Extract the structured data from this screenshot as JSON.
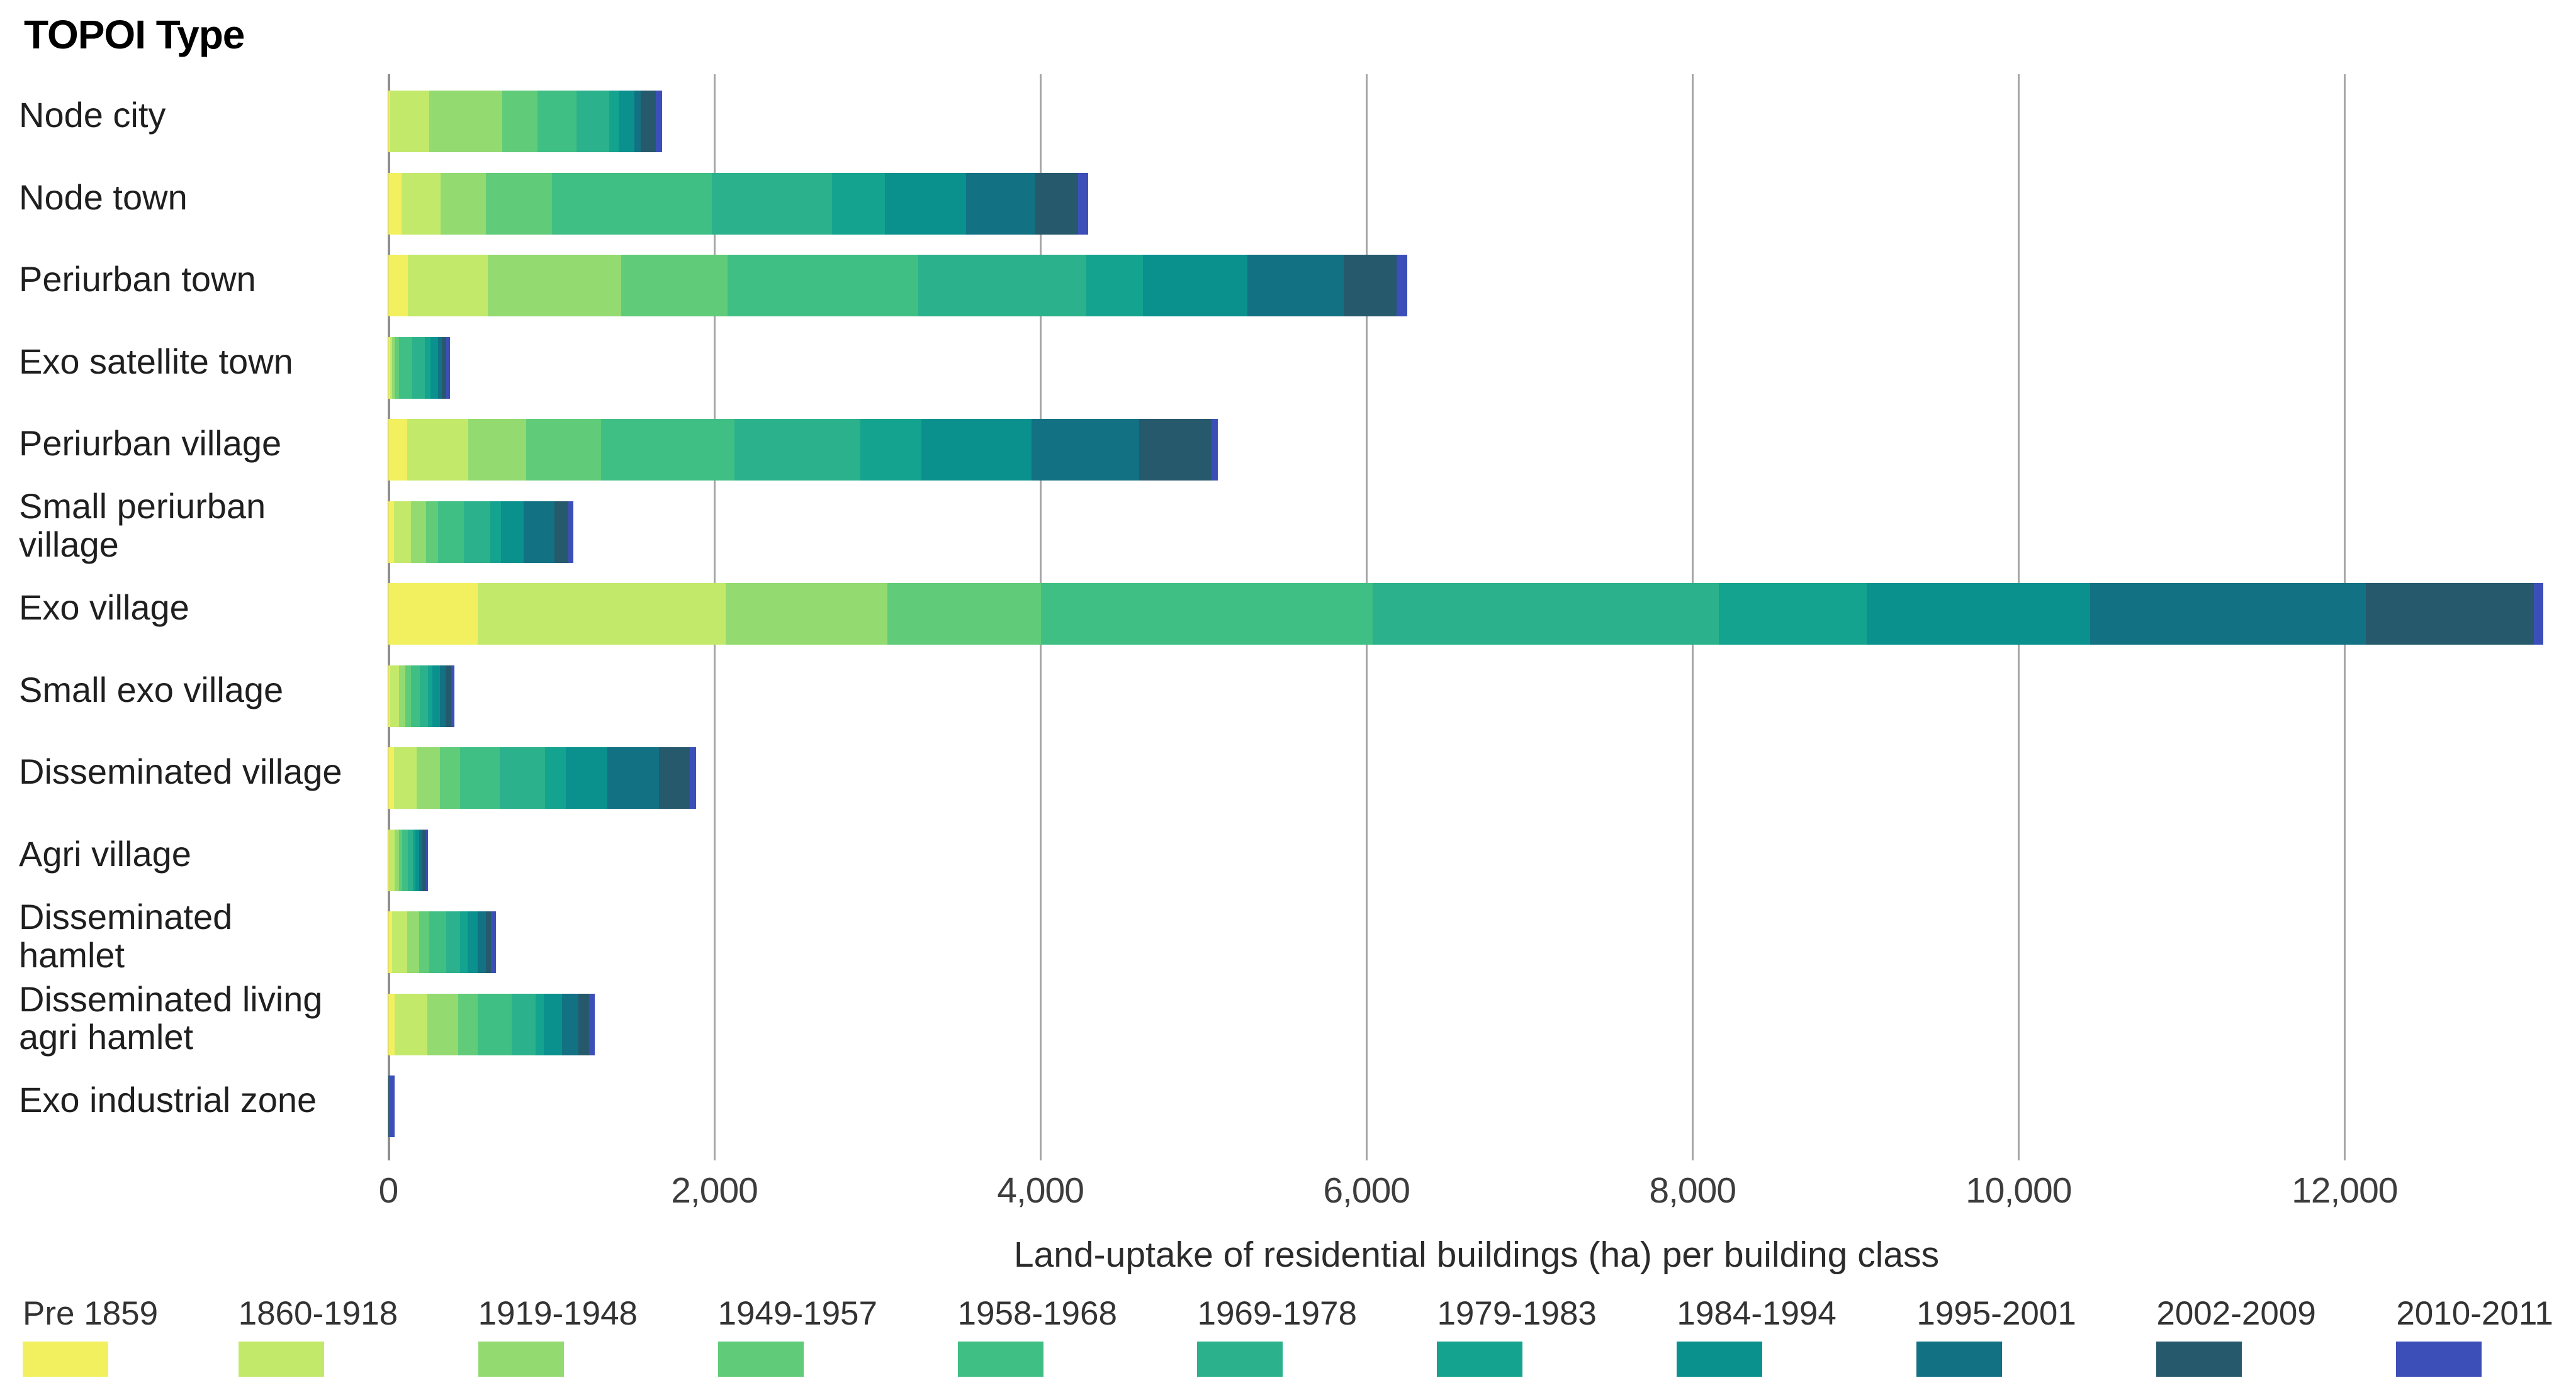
{
  "title": "TOPOI Type",
  "chart_data": {
    "type": "bar",
    "orientation": "horizontal",
    "stacked": true,
    "title": "TOPOI Type",
    "xlabel": "Land-uptake of residential buildings (ha) per building class",
    "ylabel": "TOPOI Type",
    "xlim": [
      0,
      13350
    ],
    "grid": "vertical",
    "legend_position": "bottom",
    "x_ticks": [
      0,
      2000,
      4000,
      6000,
      8000,
      10000,
      12000
    ],
    "x_tick_labels": [
      "0",
      "2,000",
      "4,000",
      "6,000",
      "8,000",
      "10,000",
      "12,000"
    ],
    "categories": [
      "Node city",
      "Node town",
      "Periurban town",
      "Exo satellite town",
      "Periurban village",
      "Small periurban\nvillage",
      "Exo village",
      "Small exo village",
      "Disseminated village",
      "Agri village",
      "Disseminated\nhamlet",
      "Disseminated living\nagri hamlet",
      "Exo industrial zone"
    ],
    "category_totals": [
      1680,
      4295,
      6250,
      380,
      5090,
      1135,
      13220,
      405,
      1890,
      245,
      660,
      1265,
      40
    ],
    "series": [
      {
        "name": "Pre 1859",
        "color": "#f2f05e",
        "values": [
          10,
          80,
          120,
          10,
          115,
          35,
          550,
          10,
          35,
          5,
          25,
          40,
          0
        ]
      },
      {
        "name": "1860-1918",
        "color": "#c3e96b",
        "values": [
          240,
          240,
          490,
          15,
          375,
          105,
          1520,
          55,
          140,
          35,
          90,
          200,
          0
        ]
      },
      {
        "name": "1919-1948",
        "color": "#93da70",
        "values": [
          450,
          280,
          820,
          15,
          355,
          90,
          990,
          40,
          140,
          25,
          75,
          190,
          0
        ]
      },
      {
        "name": "1949-1957",
        "color": "#60cb79",
        "values": [
          215,
          405,
          650,
          25,
          460,
          75,
          945,
          35,
          125,
          20,
          60,
          120,
          0
        ]
      },
      {
        "name": "1958-1968",
        "color": "#40bf84",
        "values": [
          240,
          980,
          1170,
          80,
          820,
          160,
          2035,
          55,
          245,
          35,
          105,
          205,
          0
        ]
      },
      {
        "name": "1969-1978",
        "color": "#2bb18b",
        "values": [
          200,
          735,
          1030,
          80,
          770,
          160,
          2120,
          50,
          275,
          30,
          85,
          150,
          0
        ]
      },
      {
        "name": "1979-1983",
        "color": "#14a38f",
        "values": [
          60,
          325,
          350,
          35,
          375,
          65,
          910,
          25,
          130,
          15,
          45,
          50,
          0
        ]
      },
      {
        "name": "1984-1994",
        "color": "#0a918e",
        "values": [
          95,
          500,
          640,
          45,
          675,
          140,
          1370,
          45,
          255,
          25,
          65,
          110,
          0
        ]
      },
      {
        "name": "1995-2001",
        "color": "#127183",
        "values": [
          40,
          425,
          590,
          25,
          660,
          190,
          1690,
          35,
          315,
          20,
          50,
          100,
          0
        ]
      },
      {
        "name": "2002-2009",
        "color": "#26596c",
        "values": [
          90,
          260,
          325,
          25,
          445,
          85,
          1030,
          35,
          190,
          20,
          30,
          65,
          5
        ]
      },
      {
        "name": "2010-2011",
        "color": "#3c4fb9",
        "values": [
          40,
          65,
          65,
          25,
          40,
          30,
          60,
          20,
          40,
          15,
          30,
          35,
          35
        ]
      }
    ]
  }
}
